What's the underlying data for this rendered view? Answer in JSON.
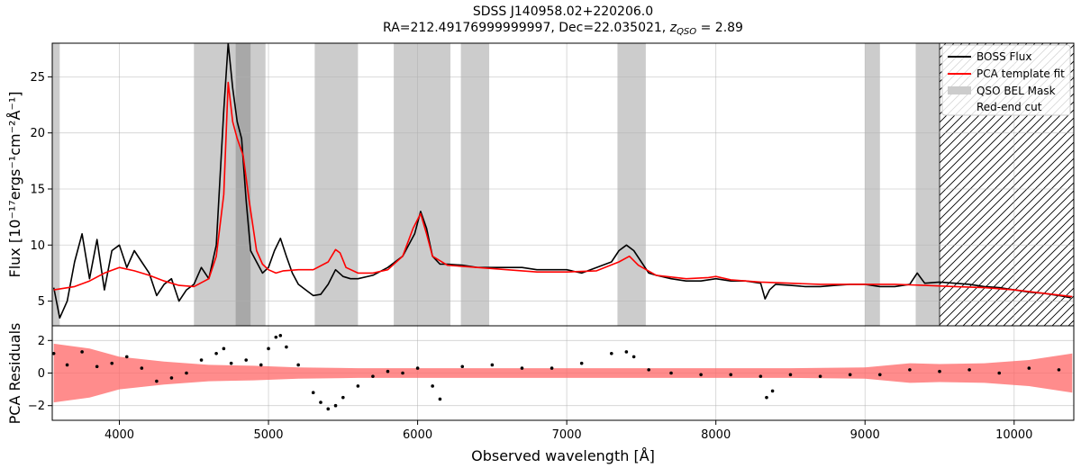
{
  "chart_data": {
    "type": "line",
    "title_line1": "SDSS J140958.02+220206.0",
    "title_line2_prefix": "RA=212.49176999999997, Dec=22.035021, ",
    "title_line2_z": "z",
    "title_line2_zsub": "QSO",
    "title_line2_suffix": " = 2.89",
    "xlabel": "Observed wavelength [Å]",
    "top_panel": {
      "ylabel": "Flux [10⁻¹⁷ergs⁻¹cm⁻²Å⁻¹]",
      "xlim": [
        3550,
        10400
      ],
      "ylim": [
        2.8,
        28
      ],
      "yticks": [
        5,
        10,
        15,
        20,
        25
      ],
      "xticks": [
        4000,
        5000,
        6000,
        7000,
        8000,
        9000,
        10000
      ],
      "mask_regions": [
        [
          3550,
          3600
        ],
        [
          4500,
          4980
        ],
        [
          5310,
          5600
        ],
        [
          5840,
          6220
        ],
        [
          6290,
          6480
        ],
        [
          7340,
          7530
        ],
        [
          9000,
          9100
        ],
        [
          9340,
          9500
        ]
      ],
      "mask_dark_regions": [
        [
          4780,
          4880
        ]
      ],
      "red_end_cut": [
        9500,
        10400
      ],
      "series": [
        {
          "name": "BOSS Flux",
          "color": "#000000",
          "x": [
            3560,
            3600,
            3650,
            3700,
            3750,
            3800,
            3850,
            3900,
            3950,
            4000,
            4050,
            4100,
            4150,
            4200,
            4250,
            4300,
            4350,
            4400,
            4450,
            4500,
            4550,
            4600,
            4650,
            4700,
            4730,
            4760,
            4790,
            4820,
            4850,
            4880,
            4920,
            4960,
            5000,
            5040,
            5080,
            5120,
            5160,
            5200,
            5250,
            5300,
            5350,
            5400,
            5450,
            5500,
            5550,
            5600,
            5700,
            5800,
            5900,
            5980,
            6020,
            6060,
            6100,
            6150,
            6200,
            6300,
            6400,
            6500,
            6600,
            6700,
            6800,
            6900,
            7000,
            7100,
            7200,
            7300,
            7350,
            7400,
            7450,
            7500,
            7550,
            7600,
            7700,
            7800,
            7900,
            8000,
            8100,
            8200,
            8300,
            8330,
            8360,
            8400,
            8500,
            8600,
            8700,
            8800,
            8900,
            9000,
            9100,
            9200,
            9300,
            9350,
            9400,
            9500,
            9600,
            9700,
            9800,
            9900,
            10000,
            10100,
            10200,
            10300,
            10380
          ],
          "values": [
            6.2,
            3.5,
            5.0,
            8.5,
            11.0,
            7.0,
            10.5,
            6.0,
            9.5,
            10.0,
            8.0,
            9.5,
            8.5,
            7.5,
            5.5,
            6.5,
            7.0,
            5.0,
            6.0,
            6.5,
            8.0,
            7.0,
            10.0,
            22.0,
            28.0,
            24.0,
            21.0,
            19.5,
            14.0,
            9.5,
            8.5,
            7.5,
            8.0,
            9.5,
            10.6,
            9.0,
            7.5,
            6.5,
            6.0,
            5.5,
            5.6,
            6.5,
            7.8,
            7.2,
            7.0,
            7.0,
            7.3,
            8.0,
            9.0,
            11.0,
            13.0,
            11.5,
            9.0,
            8.3,
            8.3,
            8.2,
            8.0,
            8.0,
            8.0,
            8.0,
            7.8,
            7.8,
            7.8,
            7.5,
            8.0,
            8.5,
            9.5,
            10.0,
            9.5,
            8.5,
            7.5,
            7.3,
            7.0,
            6.8,
            6.8,
            7.0,
            6.8,
            6.8,
            6.6,
            5.2,
            6.0,
            6.5,
            6.4,
            6.3,
            6.3,
            6.4,
            6.5,
            6.5,
            6.3,
            6.3,
            6.5,
            7.5,
            6.6,
            6.7,
            6.6,
            6.5,
            6.3,
            6.2,
            6.0,
            5.8,
            5.7,
            5.5,
            5.3
          ]
        },
        {
          "name": "PCA template fit",
          "color": "#ff0000",
          "x": [
            3560,
            3700,
            3800,
            3900,
            4000,
            4100,
            4200,
            4300,
            4400,
            4500,
            4600,
            4650,
            4700,
            4730,
            4760,
            4790,
            4830,
            4870,
            4920,
            4960,
            5000,
            5050,
            5100,
            5200,
            5300,
            5400,
            5450,
            5480,
            5520,
            5600,
            5700,
            5800,
            5900,
            5970,
            6020,
            6060,
            6100,
            6200,
            6400,
            6600,
            6800,
            7000,
            7200,
            7350,
            7420,
            7480,
            7600,
            7800,
            7950,
            8000,
            8100,
            8300,
            8500,
            8700,
            9000,
            9200,
            9400,
            9600,
            9800,
            10000,
            10200,
            10390
          ],
          "values": [
            6.0,
            6.3,
            6.8,
            7.5,
            8.0,
            7.7,
            7.3,
            6.8,
            6.4,
            6.3,
            7.0,
            9.0,
            14.5,
            24.5,
            21.0,
            19.5,
            18.0,
            14.0,
            9.5,
            8.3,
            7.8,
            7.5,
            7.7,
            7.8,
            7.8,
            8.5,
            9.6,
            9.3,
            8.0,
            7.5,
            7.5,
            7.8,
            9.0,
            11.5,
            12.8,
            11.0,
            9.0,
            8.2,
            8.0,
            7.8,
            7.6,
            7.6,
            7.7,
            8.5,
            9.0,
            8.2,
            7.3,
            7.0,
            7.1,
            7.2,
            6.9,
            6.7,
            6.6,
            6.5,
            6.5,
            6.5,
            6.4,
            6.3,
            6.2,
            6.0,
            5.7,
            5.4
          ]
        }
      ],
      "legend": {
        "position": "top-right",
        "entries": [
          "BOSS Flux",
          "PCA template fit",
          "QSO BEL Mask",
          "Red-end cut"
        ]
      }
    },
    "bottom_panel": {
      "ylabel": "PCA Residuals",
      "ylim": [
        -2.9,
        2.9
      ],
      "yticks": [
        -2,
        0,
        2
      ],
      "series": [
        {
          "name": "residual points",
          "color": "#000000",
          "x": [
            3560,
            3650,
            3750,
            3850,
            3950,
            4050,
            4150,
            4250,
            4350,
            4450,
            4550,
            4650,
            4700,
            4750,
            4850,
            4950,
            5000,
            5050,
            5080,
            5120,
            5200,
            5300,
            5350,
            5400,
            5450,
            5500,
            5600,
            5700,
            5800,
            5900,
            6000,
            6100,
            6150,
            6300,
            6500,
            6700,
            6900,
            7100,
            7300,
            7400,
            7450,
            7550,
            7700,
            7900,
            8100,
            8300,
            8340,
            8380,
            8500,
            8700,
            8900,
            9100,
            9300,
            9500,
            9700,
            9900,
            10100,
            10300
          ],
          "values": [
            1.2,
            0.5,
            1.3,
            0.4,
            0.6,
            1.0,
            0.3,
            -0.5,
            -0.3,
            0.0,
            0.8,
            1.2,
            1.5,
            0.6,
            0.8,
            0.5,
            1.5,
            2.2,
            2.3,
            1.6,
            0.5,
            -1.2,
            -1.8,
            -2.2,
            -2.0,
            -1.5,
            -0.8,
            -0.2,
            0.1,
            0.0,
            0.3,
            -0.8,
            -1.6,
            0.4,
            0.5,
            0.3,
            0.3,
            0.6,
            1.2,
            1.3,
            1.0,
            0.2,
            0.0,
            -0.1,
            -0.1,
            -0.2,
            -1.5,
            -1.1,
            -0.1,
            -0.2,
            -0.1,
            -0.1,
            0.2,
            0.1,
            0.2,
            0.0,
            0.3,
            0.2
          ]
        },
        {
          "name": "residual error band",
          "color": "#ff6666",
          "x": [
            3560,
            3800,
            4000,
            4300,
            4600,
            4900,
            5200,
            5600,
            6000,
            6500,
            7000,
            7500,
            8000,
            8500,
            9000,
            9300,
            9500,
            9800,
            10100,
            10390
          ],
          "values": [
            1.8,
            1.5,
            1.0,
            0.7,
            0.5,
            0.45,
            0.35,
            0.3,
            0.3,
            0.3,
            0.3,
            0.3,
            0.3,
            0.3,
            0.35,
            0.6,
            0.55,
            0.6,
            0.8,
            1.2
          ]
        }
      ]
    }
  }
}
